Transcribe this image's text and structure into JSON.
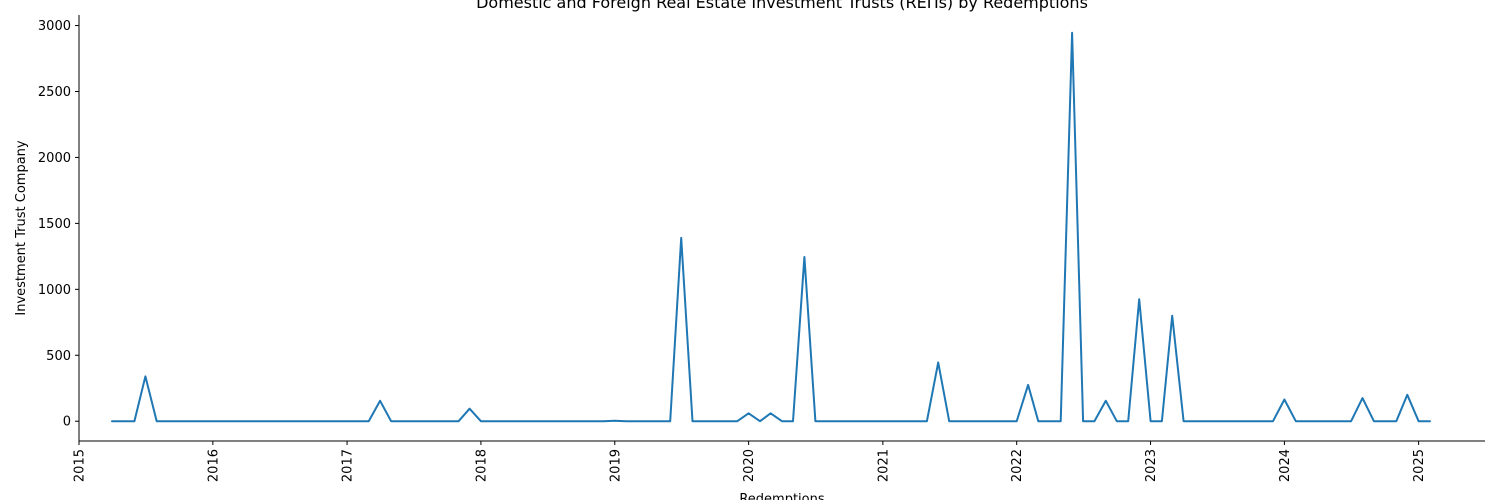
{
  "chart_data": {
    "type": "line",
    "title": "Domestic and Foreign Real Estate Investment Trusts (REITs) by Redemptions",
    "xlabel": "Redemptions",
    "ylabel": "Investment Trust Company",
    "xlim": [
      "2015-01-01",
      "2025-07-01"
    ],
    "ylim": [
      -150,
      3080
    ],
    "x_ticks": [
      "2015",
      "2016",
      "2017",
      "2018",
      "2019",
      "2020",
      "2021",
      "2022",
      "2023",
      "2024",
      "2025"
    ],
    "y_ticks": [
      "0",
      "500",
      "1000",
      "1500",
      "2000",
      "2500",
      "3000"
    ],
    "x_tick_dates": [
      "2015-01-01",
      "2016-01-01",
      "2017-01-01",
      "2018-01-01",
      "2019-01-01",
      "2020-01-01",
      "2021-01-01",
      "2022-01-01",
      "2023-01-01",
      "2024-01-01",
      "2025-01-01"
    ],
    "y_tick_values": [
      0,
      500,
      1000,
      1500,
      2000,
      2500,
      3000
    ],
    "grid": false,
    "color": "#1f77b4",
    "series": [
      {
        "x": [
          "2015-04",
          "2015-05",
          "2015-06",
          "2015-07",
          "2015-08",
          "2015-09",
          "2015-10",
          "2015-11",
          "2015-12",
          "2016-01",
          "2016-02",
          "2016-03",
          "2016-04",
          "2016-05",
          "2016-06",
          "2016-07",
          "2016-08",
          "2016-09",
          "2016-10",
          "2016-11",
          "2016-12",
          "2017-01",
          "2017-02",
          "2017-03",
          "2017-04",
          "2017-05",
          "2017-06",
          "2017-07",
          "2017-08",
          "2017-09",
          "2017-10",
          "2017-11",
          "2017-12",
          "2018-01",
          "2018-02",
          "2018-03",
          "2018-04",
          "2018-05",
          "2018-06",
          "2018-07",
          "2018-08",
          "2018-09",
          "2018-10",
          "2018-11",
          "2018-12",
          "2019-01",
          "2019-02",
          "2019-03",
          "2019-04",
          "2019-05",
          "2019-06",
          "2019-07",
          "2019-08",
          "2019-09",
          "2019-10",
          "2019-11",
          "2019-12",
          "2020-01",
          "2020-02",
          "2020-03",
          "2020-04",
          "2020-05",
          "2020-06",
          "2020-07",
          "2020-08",
          "2020-09",
          "2020-10",
          "2020-11",
          "2020-12",
          "2021-01",
          "2021-02",
          "2021-03",
          "2021-04",
          "2021-05",
          "2021-06",
          "2021-07",
          "2021-08",
          "2021-09",
          "2021-10",
          "2021-11",
          "2021-12",
          "2022-01",
          "2022-02",
          "2022-03",
          "2022-04",
          "2022-05",
          "2022-06",
          "2022-07",
          "2022-08",
          "2022-09",
          "2022-10",
          "2022-11",
          "2022-12",
          "2023-01",
          "2023-02",
          "2023-03",
          "2023-04",
          "2023-05",
          "2023-06",
          "2023-07",
          "2023-08",
          "2023-09",
          "2023-10",
          "2023-11",
          "2023-12",
          "2024-01",
          "2024-02",
          "2024-03",
          "2024-04",
          "2024-05",
          "2024-06",
          "2024-07",
          "2024-08",
          "2024-09",
          "2024-10",
          "2024-11",
          "2024-12",
          "2025-01",
          "2025-02"
        ],
        "values": [
          0,
          0,
          0,
          340,
          0,
          0,
          0,
          0,
          0,
          0,
          0,
          0,
          0,
          0,
          0,
          0,
          0,
          0,
          0,
          0,
          0,
          0,
          0,
          0,
          155,
          0,
          0,
          0,
          0,
          0,
          0,
          0,
          95,
          0,
          0,
          0,
          0,
          0,
          0,
          0,
          0,
          0,
          0,
          0,
          0,
          3,
          0,
          0,
          0,
          0,
          0,
          1390,
          0,
          0,
          0,
          0,
          0,
          60,
          0,
          60,
          0,
          0,
          1245,
          0,
          0,
          0,
          0,
          0,
          0,
          0,
          0,
          0,
          0,
          0,
          445,
          0,
          0,
          0,
          0,
          0,
          0,
          0,
          275,
          0,
          0,
          0,
          2945,
          0,
          0,
          155,
          0,
          0,
          925,
          0,
          0,
          800,
          0,
          0,
          0,
          0,
          0,
          0,
          0,
          0,
          0,
          165,
          0,
          0,
          0,
          0,
          0,
          0,
          175,
          0,
          0,
          0,
          200,
          0,
          0
        ]
      }
    ]
  }
}
